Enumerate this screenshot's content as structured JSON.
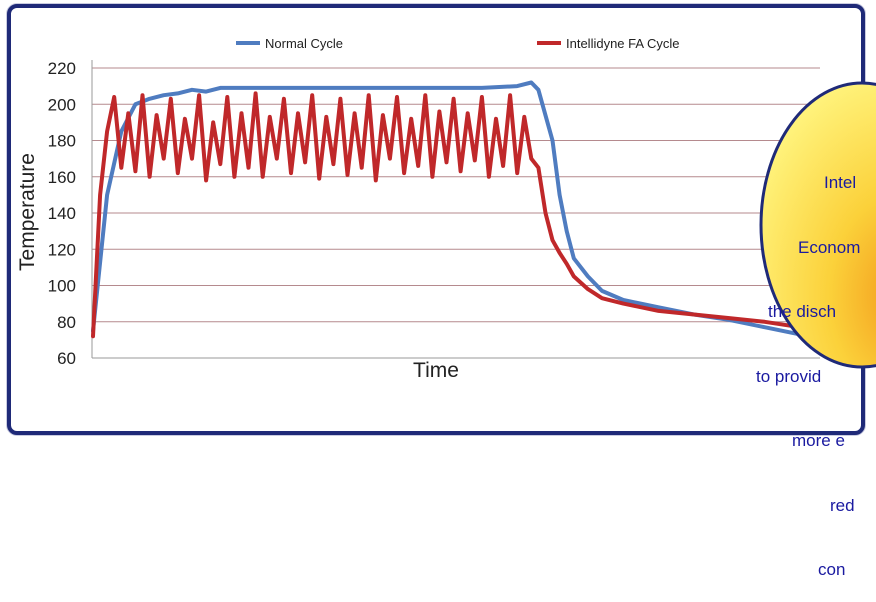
{
  "chart_data": {
    "type": "line",
    "title": "",
    "xlabel": "Time",
    "ylabel": "Temperature",
    "ylim": [
      60,
      220
    ],
    "yticks": [
      60,
      80,
      100,
      120,
      140,
      160,
      180,
      200,
      220
    ],
    "grid": true,
    "legend_position": "top",
    "series": [
      {
        "name": "Normal Cycle",
        "color": "#4f7cc0",
        "x": [
          0,
          2,
          4,
          6,
          8,
          10,
          12,
          14,
          16,
          18,
          25,
          30,
          35,
          40,
          45,
          50,
          55,
          60,
          62,
          63,
          65,
          66,
          67,
          68,
          70,
          72,
          75,
          80,
          85,
          90,
          95,
          100
        ],
        "values": [
          75,
          150,
          185,
          200,
          203,
          205,
          206,
          208,
          207,
          209,
          209,
          209,
          209,
          209,
          209,
          209,
          209,
          210,
          212,
          208,
          180,
          150,
          130,
          115,
          105,
          97,
          92,
          88,
          84,
          81,
          77,
          73
        ]
      },
      {
        "name": "Intellidyne FA Cycle",
        "color": "#c0282a",
        "x": [
          0,
          1,
          2,
          3,
          4,
          5,
          6,
          7,
          8,
          9,
          10,
          11,
          12,
          13,
          14,
          15,
          16,
          17,
          18,
          19,
          20,
          21,
          22,
          23,
          24,
          25,
          26,
          27,
          28,
          29,
          30,
          31,
          32,
          33,
          34,
          35,
          36,
          37,
          38,
          39,
          40,
          41,
          42,
          43,
          44,
          45,
          46,
          47,
          48,
          49,
          50,
          51,
          52,
          53,
          54,
          55,
          56,
          57,
          58,
          59,
          60,
          61,
          62,
          63,
          64,
          65,
          66,
          67,
          68,
          70,
          72,
          75,
          80,
          85,
          90,
          95,
          100
        ],
        "values": [
          72,
          150,
          185,
          204,
          165,
          195,
          163,
          205,
          160,
          194,
          170,
          203,
          162,
          192,
          170,
          205,
          158,
          190,
          167,
          204,
          160,
          195,
          165,
          206,
          160,
          193,
          170,
          203,
          162,
          195,
          168,
          205,
          159,
          193,
          167,
          203,
          161,
          195,
          165,
          205,
          158,
          194,
          170,
          204,
          162,
          192,
          166,
          205,
          160,
          196,
          168,
          203,
          163,
          195,
          169,
          204,
          160,
          192,
          166,
          205,
          162,
          193,
          170,
          165,
          140,
          125,
          118,
          112,
          105,
          98,
          93,
          90,
          86,
          84,
          82,
          80,
          77
        ]
      }
    ]
  },
  "callout": {
    "lines": [
      "Intel",
      "Econom",
      "the disch",
      "to provid",
      "more e",
      "red",
      "con"
    ]
  }
}
